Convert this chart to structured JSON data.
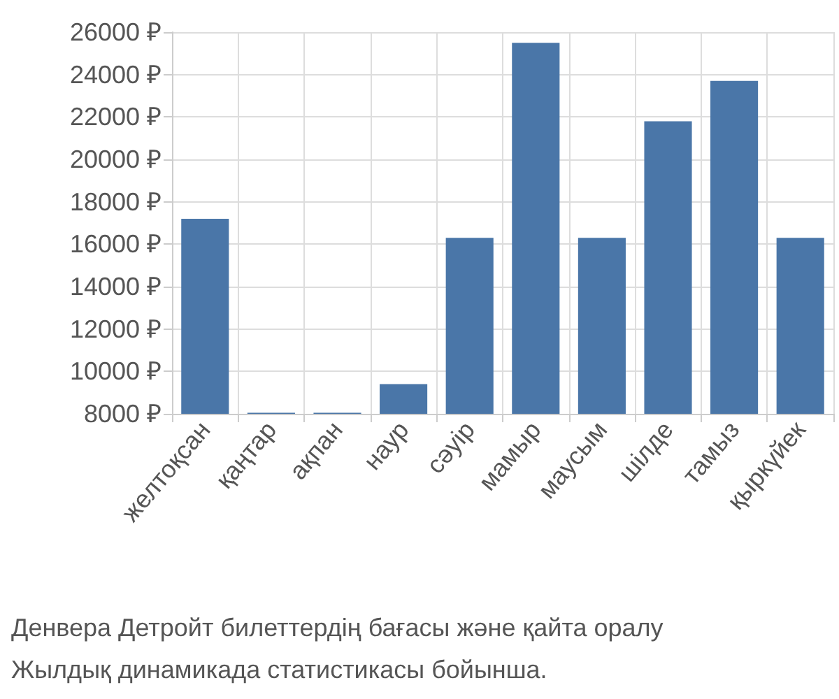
{
  "chart_data": {
    "type": "bar",
    "categories": [
      "желтоқсан",
      "қаңтар",
      "ақпан",
      "наур",
      "сәуір",
      "мамыр",
      "маусым",
      "шілде",
      "тамыз",
      "қыркүйек"
    ],
    "values": [
      17200,
      8050,
      8050,
      9400,
      16300,
      25500,
      16300,
      21800,
      23700,
      16300
    ],
    "color": "#4a76a8",
    "ylim": [
      8000,
      26000
    ],
    "yticks": [
      {
        "value": 8000,
        "label": "8000 ₽"
      },
      {
        "value": 10000,
        "label": "10000 ₽"
      },
      {
        "value": 12000,
        "label": "12000 ₽"
      },
      {
        "value": 14000,
        "label": "14000 ₽"
      },
      {
        "value": 16000,
        "label": "16000 ₽"
      },
      {
        "value": 18000,
        "label": "18000 ₽"
      },
      {
        "value": 20000,
        "label": "20000 ₽"
      },
      {
        "value": 22000,
        "label": "22000 ₽"
      },
      {
        "value": 24000,
        "label": "24000 ₽"
      },
      {
        "value": 26000,
        "label": "26000 ₽"
      }
    ],
    "grid": true,
    "annotations": [
      "Денвера Детройт билеттердің бағасы және қайта оралу",
      "Жылдық динамикада статистикасы бойынша."
    ]
  }
}
